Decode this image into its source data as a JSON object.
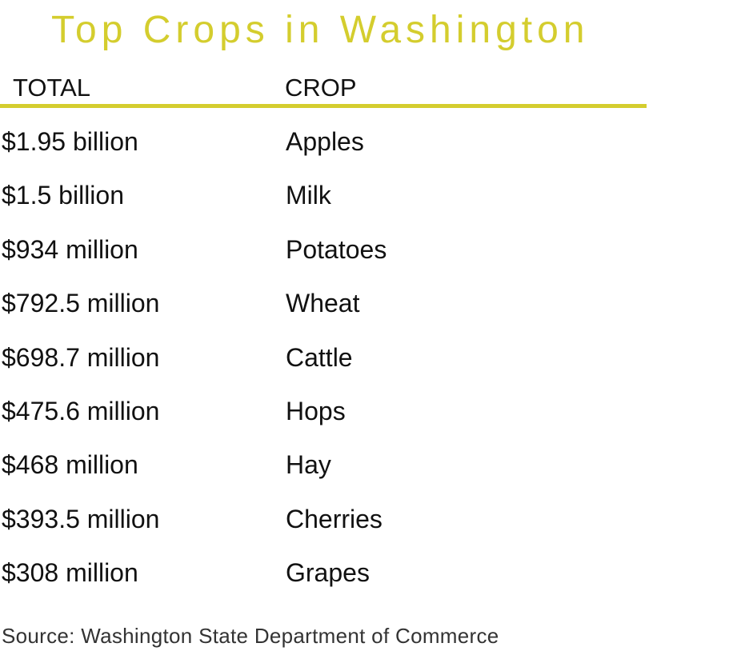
{
  "colors": {
    "accent": "#d4cd2e",
    "text": "#111111",
    "source_text": "#333333"
  },
  "chart_data": {
    "type": "table",
    "title": "Top Crops in Washington",
    "columns": [
      "TOTAL",
      "CROP"
    ],
    "rows": [
      {
        "total": "$1.95 billion",
        "crop": "Apples",
        "value_usd": 1950000000
      },
      {
        "total": "$1.5 billion",
        "crop": "Milk",
        "value_usd": 1500000000
      },
      {
        "total": "$934 million",
        "crop": "Potatoes",
        "value_usd": 934000000
      },
      {
        "total": "$792.5 million",
        "crop": "Wheat",
        "value_usd": 792500000
      },
      {
        "total": "$698.7 million",
        "crop": "Cattle",
        "value_usd": 698700000
      },
      {
        "total": "$475.6 million",
        "crop": "Hops",
        "value_usd": 475600000
      },
      {
        "total": "$468 million",
        "crop": "Hay",
        "value_usd": 468000000
      },
      {
        "total": "$393.5 million",
        "crop": "Cherries",
        "value_usd": 393500000
      },
      {
        "total": "$308 million",
        "crop": "Grapes",
        "value_usd": 308000000
      }
    ],
    "source": "Source: Washington State Department of Commerce"
  }
}
